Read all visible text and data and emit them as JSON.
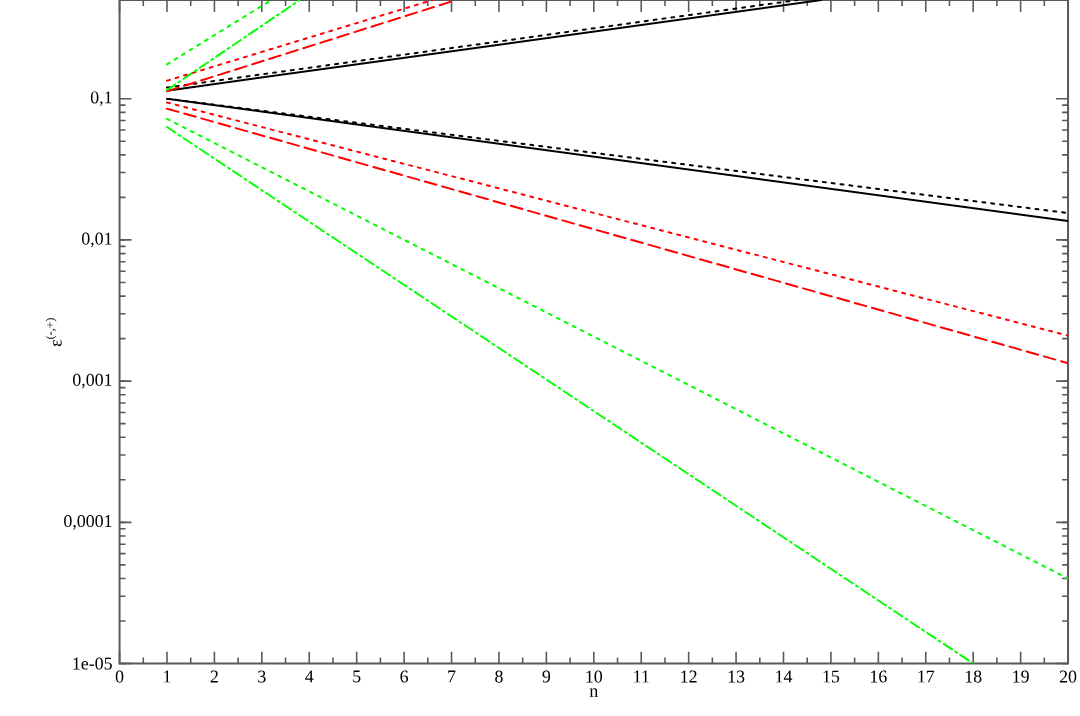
{
  "chart_data": {
    "type": "line",
    "xlabel": "n",
    "ylabel": "ε$^{(-,+)}$",
    "log": "y",
    "marker": "none",
    "xlim": [
      0,
      20
    ],
    "xticks": [
      0,
      1,
      2,
      3,
      4,
      5,
      6,
      7,
      8,
      9,
      10,
      11,
      12,
      13,
      14,
      15,
      16,
      17,
      18,
      19,
      20
    ],
    "ylim": [
      1e-05,
      0.5
    ],
    "yticks": [
      {
        "value": 1e-05,
        "label": "1e-05"
      },
      {
        "value": 0.0001,
        "label": "0,0001"
      },
      {
        "value": 0.001,
        "label": "0,001"
      },
      {
        "value": 0.01,
        "label": "0,01"
      },
      {
        "value": 0.1,
        "label": "0,1"
      }
    ],
    "series": [
      {
        "color": "#000000",
        "line_style": "solid",
        "x": [
          1,
          14.8
        ],
        "values": [
          0.114,
          0.5
        ]
      },
      {
        "color": "#000000",
        "line_style": "dotted",
        "x": [
          1,
          14.3
        ],
        "values": [
          0.12,
          0.5
        ]
      },
      {
        "color": "#000000",
        "line_style": "solid",
        "x": [
          1,
          20
        ],
        "values": [
          0.1,
          0.0136
        ]
      },
      {
        "color": "#000000",
        "line_style": "dotted",
        "x": [
          1,
          20
        ],
        "values": [
          0.1,
          0.0155
        ]
      },
      {
        "color": "#ff0000",
        "line_style": "dashed",
        "x": [
          1,
          7.1
        ],
        "values": [
          0.113,
          0.5
        ]
      },
      {
        "color": "#ff0000",
        "line_style": "dotted",
        "x": [
          1,
          6.6
        ],
        "values": [
          0.134,
          0.5
        ]
      },
      {
        "color": "#ff0000",
        "line_style": "dashed",
        "x": [
          1,
          20
        ],
        "values": [
          0.085,
          0.00134
        ]
      },
      {
        "color": "#ff0000",
        "line_style": "dotted",
        "x": [
          1,
          20
        ],
        "values": [
          0.094,
          0.0021
        ]
      },
      {
        "color": "#00ff00",
        "line_style": "dashdot",
        "x": [
          1,
          3.8
        ],
        "values": [
          0.115,
          0.5
        ]
      },
      {
        "color": "#00ff00",
        "line_style": "dotted",
        "x": [
          1,
          3.2
        ],
        "values": [
          0.175,
          0.5
        ]
      },
      {
        "color": "#00ff00",
        "line_style": "dashdot",
        "x": [
          1,
          18.0
        ],
        "values": [
          0.063,
          1e-05
        ]
      },
      {
        "color": "#00ff00",
        "line_style": "dotted",
        "x": [
          1,
          20
        ],
        "values": [
          0.072,
          4e-05
        ]
      }
    ]
  }
}
